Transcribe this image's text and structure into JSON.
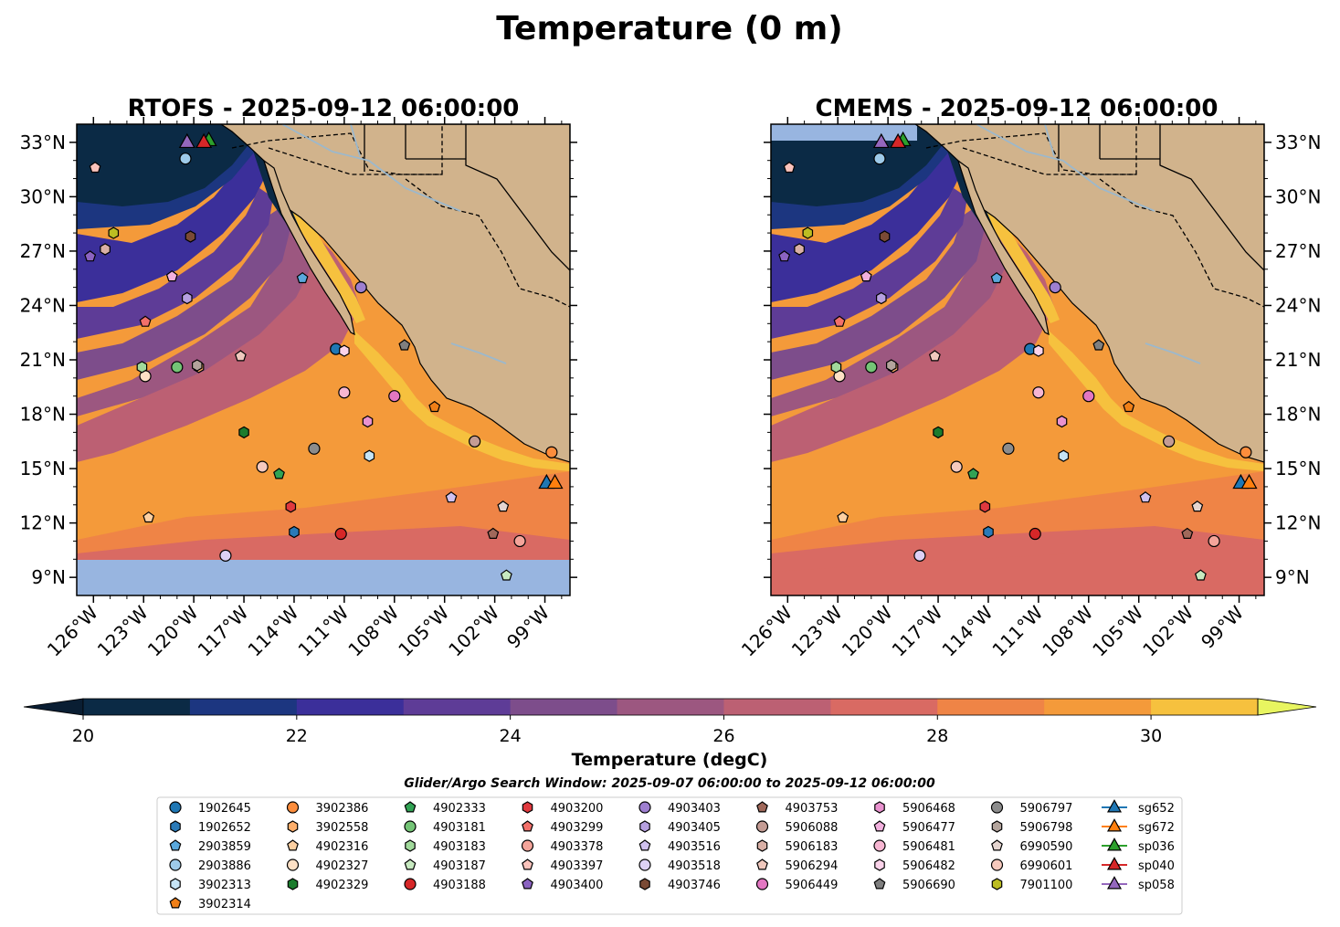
{
  "chart_data": {
    "type": "map",
    "title": "Temperature (0 m)",
    "panels": [
      {
        "name": "rtofs",
        "title": "RTOFS - 2025-09-12 06:00:00",
        "missing_south_of_lat": 10.1
      },
      {
        "name": "cmems",
        "title": "CMEMS - 2025-09-12 06:00:00",
        "missing_north_of_lat": 33.7
      }
    ],
    "extent": {
      "lon": [
        -127,
        -97.5
      ],
      "lat": [
        8,
        34
      ]
    },
    "x_ticks": [
      {
        "lon": -126,
        "label": "126°W"
      },
      {
        "lon": -123,
        "label": "123°W"
      },
      {
        "lon": -120,
        "label": "120°W"
      },
      {
        "lon": -117,
        "label": "117°W"
      },
      {
        "lon": -114,
        "label": "114°W"
      },
      {
        "lon": -111,
        "label": "111°W"
      },
      {
        "lon": -108,
        "label": "108°W"
      },
      {
        "lon": -105,
        "label": "105°W"
      },
      {
        "lon": -102,
        "label": "102°W"
      },
      {
        "lon": -99,
        "label": "99°W"
      }
    ],
    "y_ticks": [
      {
        "lat": 9,
        "label": "9°N"
      },
      {
        "lat": 12,
        "label": "12°N"
      },
      {
        "lat": 15,
        "label": "15°N"
      },
      {
        "lat": 18,
        "label": "18°N"
      },
      {
        "lat": 21,
        "label": "21°N"
      },
      {
        "lat": 24,
        "label": "24°N"
      },
      {
        "lat": 27,
        "label": "27°N"
      },
      {
        "lat": 30,
        "label": "30°N"
      },
      {
        "lat": 33,
        "label": "33°N"
      }
    ],
    "colorbar": {
      "label": "Temperature (degC)",
      "range": [
        20,
        31
      ],
      "ticks": [
        20,
        22,
        24,
        26,
        28,
        30
      ],
      "colors": [
        "#0b2a45",
        "#1c3680",
        "#3b2f9a",
        "#5e3c97",
        "#7d4d8b",
        "#9c5780",
        "#bc6073",
        "#d96a63",
        "#ef8446",
        "#f49a3a",
        "#f6c13e"
      ],
      "extend_min_color": "#0a1e33",
      "extend_max_color": "#e8f560"
    },
    "search_window": "Glider/Argo Search Window: 2025-09-07 06:00:00 to 2025-09-12 06:00:00",
    "markers": [
      {
        "id": "1902645",
        "shape": "circle",
        "color": "#1f77b4",
        "lon": -111.5,
        "lat": 21.6
      },
      {
        "id": "1902652",
        "shape": "hexagon",
        "color": "#2a7ab8",
        "lon": -114.0,
        "lat": 11.5
      },
      {
        "id": "2903859",
        "shape": "pentagon",
        "color": "#5aa8dc",
        "lon": -113.5,
        "lat": 25.5
      },
      {
        "id": "2903886",
        "shape": "circle",
        "color": "#9ecae9",
        "lon": -120.5,
        "lat": 32.1
      },
      {
        "id": "3902313",
        "shape": "hexagon",
        "color": "#c6e4f5",
        "lon": -109.5,
        "lat": 15.7
      },
      {
        "id": "3902314",
        "shape": "pentagon",
        "color": "#f07f17",
        "lon": -105.6,
        "lat": 18.4
      },
      {
        "id": "3902386",
        "shape": "circle",
        "color": "#fd8d3c",
        "lon": -98.6,
        "lat": 15.9
      },
      {
        "id": "3902558",
        "shape": "hexagon",
        "color": "#fdae6b",
        "lon": -119.7,
        "lat": 20.6
      },
      {
        "id": "4902316",
        "shape": "pentagon",
        "color": "#fdd0a2",
        "lon": -122.7,
        "lat": 12.3
      },
      {
        "id": "4902327",
        "shape": "circle",
        "color": "#fde0c5",
        "lon": -122.9,
        "lat": 20.1
      },
      {
        "id": "4902329",
        "shape": "hexagon",
        "color": "#1b7c2d",
        "lon": -117.0,
        "lat": 17.0
      },
      {
        "id": "4902333",
        "shape": "pentagon",
        "color": "#31a354",
        "lon": -114.9,
        "lat": 14.7
      },
      {
        "id": "4903181",
        "shape": "circle",
        "color": "#74c476",
        "lon": -121.0,
        "lat": 20.6
      },
      {
        "id": "4903183",
        "shape": "hexagon",
        "color": "#a1d99b",
        "lon": -123.1,
        "lat": 20.6
      },
      {
        "id": "4903187",
        "shape": "pentagon",
        "color": "#c7e9c0",
        "lon": -101.3,
        "lat": 9.1
      },
      {
        "id": "4903188",
        "shape": "circle",
        "color": "#d62728",
        "lon": -111.2,
        "lat": 11.4
      },
      {
        "id": "4903200",
        "shape": "hexagon",
        "color": "#e0393e",
        "lon": -114.2,
        "lat": 12.9
      },
      {
        "id": "4903299",
        "shape": "pentagon",
        "color": "#f2706a",
        "lon": -122.9,
        "lat": 23.1
      },
      {
        "id": "4903378",
        "shape": "circle",
        "color": "#f4a49a",
        "lon": -100.5,
        "lat": 11.0
      },
      {
        "id": "4903397",
        "shape": "pentagon",
        "color": "#fbc3bc",
        "lon": -125.9,
        "lat": 31.6
      },
      {
        "id": "4903400",
        "shape": "pentagon",
        "color": "#8b63c1",
        "lon": -126.2,
        "lat": 26.7
      },
      {
        "id": "4903403",
        "shape": "circle",
        "color": "#9e7fd0",
        "lon": -110.0,
        "lat": 25.0
      },
      {
        "id": "4903405",
        "shape": "hexagon",
        "color": "#b6a0e0",
        "lon": -120.4,
        "lat": 24.4
      },
      {
        "id": "4903516",
        "shape": "pentagon",
        "color": "#d0c1ef",
        "lon": -104.6,
        "lat": 13.4
      },
      {
        "id": "4903518",
        "shape": "circle",
        "color": "#ddd0f5",
        "lon": -118.1,
        "lat": 10.2
      },
      {
        "id": "4903746",
        "shape": "hexagon",
        "color": "#7a4a35",
        "lon": -120.2,
        "lat": 27.8
      },
      {
        "id": "4903753",
        "shape": "pentagon",
        "color": "#a0685a",
        "lon": -102.1,
        "lat": 11.4
      },
      {
        "id": "5906088",
        "shape": "circle",
        "color": "#c49c94",
        "lon": -103.2,
        "lat": 16.5
      },
      {
        "id": "5906183",
        "shape": "hexagon",
        "color": "#d9b0a6",
        "lon": -125.3,
        "lat": 27.1
      },
      {
        "id": "5906294",
        "shape": "pentagon",
        "color": "#f0c8bd",
        "lon": -117.2,
        "lat": 21.2
      },
      {
        "id": "5906449",
        "shape": "circle",
        "color": "#e377c2",
        "lon": -108.0,
        "lat": 19.0
      },
      {
        "id": "5906468",
        "shape": "hexagon",
        "color": "#e992cf",
        "lon": -109.6,
        "lat": 17.6
      },
      {
        "id": "5906477",
        "shape": "pentagon",
        "color": "#f2b0de",
        "lon": -121.3,
        "lat": 25.6
      },
      {
        "id": "5906481",
        "shape": "circle",
        "color": "#f7b6d2",
        "lon": -111.0,
        "lat": 19.2
      },
      {
        "id": "5906482",
        "shape": "hexagon",
        "color": "#fbd3ea",
        "lon": -111.0,
        "lat": 21.5
      },
      {
        "id": "5906690",
        "shape": "pentagon",
        "color": "#7f7f7f",
        "lon": -107.4,
        "lat": 21.8
      },
      {
        "id": "5906797",
        "shape": "circle",
        "color": "#8c8c8c",
        "lon": -112.8,
        "lat": 16.1
      },
      {
        "id": "5906798",
        "shape": "hexagon",
        "color": "#b3a49c",
        "lon": -119.8,
        "lat": 20.7
      },
      {
        "id": "6990590",
        "shape": "pentagon",
        "color": "#e5d5d0",
        "lon": -101.5,
        "lat": 12.9
      },
      {
        "id": "6990601",
        "shape": "circle",
        "color": "#f6c9bd",
        "lon": -115.9,
        "lat": 15.1
      },
      {
        "id": "7901100",
        "shape": "hexagon",
        "color": "#bcbd22",
        "lon": -124.8,
        "lat": 28.0
      },
      {
        "id": "sg652",
        "shape": "triangle",
        "color": "#1f77b4",
        "lon": -98.9,
        "lat": 14.2
      },
      {
        "id": "sg672",
        "shape": "triangle",
        "color": "#ff7f0e",
        "lon": -98.4,
        "lat": 14.2
      },
      {
        "id": "sp036",
        "shape": "triangle",
        "color": "#2ca02c",
        "lon": -119.1,
        "lat": 33.1
      },
      {
        "id": "sp040",
        "shape": "triangle",
        "color": "#d62728",
        "lon": -119.4,
        "lat": 33.0
      },
      {
        "id": "sp058",
        "shape": "triangle",
        "color": "#9467bd",
        "lon": -120.4,
        "lat": 33.0
      }
    ]
  },
  "colors": {
    "land": "#d1b38c",
    "missing": "#98b5e0",
    "river": "#9cb8cc",
    "coast": "#000000"
  }
}
